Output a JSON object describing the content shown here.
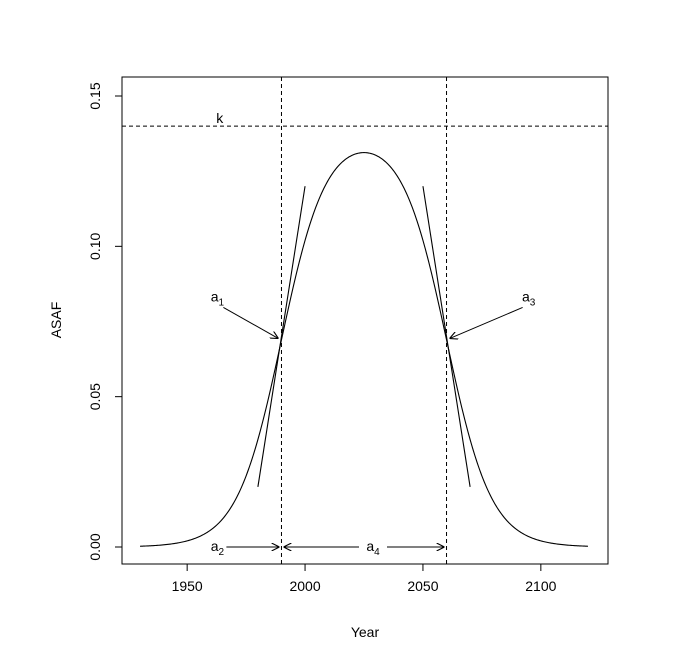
{
  "chart_data": {
    "type": "line",
    "title": "",
    "xlabel": "Year",
    "ylabel": "ASAF",
    "xlim": [
      1930,
      2120
    ],
    "ylim": [
      -0.005,
      0.15
    ],
    "xticks": [
      1950,
      2000,
      2050,
      2100
    ],
    "yticks": [
      0.0,
      0.05,
      0.1,
      0.15
    ],
    "xtick_labels": [
      "1950",
      "2000",
      "2050",
      "2100"
    ],
    "ytick_labels": [
      "0.00",
      "0.05",
      "0.10",
      "0.15"
    ],
    "grid": false,
    "curve": {
      "description": "double-logistic curve",
      "x_range": [
        1930,
        2120
      ],
      "peak_year": 2022,
      "peak_value": 0.135,
      "left_inflection": [
        1990,
        0.069
      ],
      "right_inflection": [
        2060,
        0.069
      ]
    },
    "tangents": [
      {
        "from": [
          1980,
          0.02
        ],
        "to": [
          2000,
          0.12
        ]
      },
      {
        "from": [
          2050,
          0.12
        ],
        "to": [
          2070,
          0.02
        ]
      }
    ],
    "reference_lines": {
      "horizontal_k": 0.14,
      "vertical_x": [
        1990,
        2060
      ]
    },
    "annotations": [
      {
        "id": "k",
        "text": "k",
        "sub": "",
        "at": [
          1960,
          0.142
        ]
      },
      {
        "id": "a1",
        "text": "a",
        "sub": "1",
        "at": [
          1959,
          0.083
        ],
        "arrow_to": [
          1990,
          0.069
        ]
      },
      {
        "id": "a3",
        "text": "a",
        "sub": "3",
        "at": [
          2091,
          0.083
        ],
        "arrow_to": [
          2060,
          0.069
        ]
      },
      {
        "id": "a2",
        "text": "a",
        "sub": "2",
        "at": [
          1959,
          0.0
        ],
        "arrow_to": [
          1990,
          0.0
        ]
      },
      {
        "id": "a4",
        "text": "a",
        "sub": "4",
        "at": [
          2025,
          0.0
        ],
        "arrow_between": [
          1990,
          2060
        ]
      }
    ]
  }
}
